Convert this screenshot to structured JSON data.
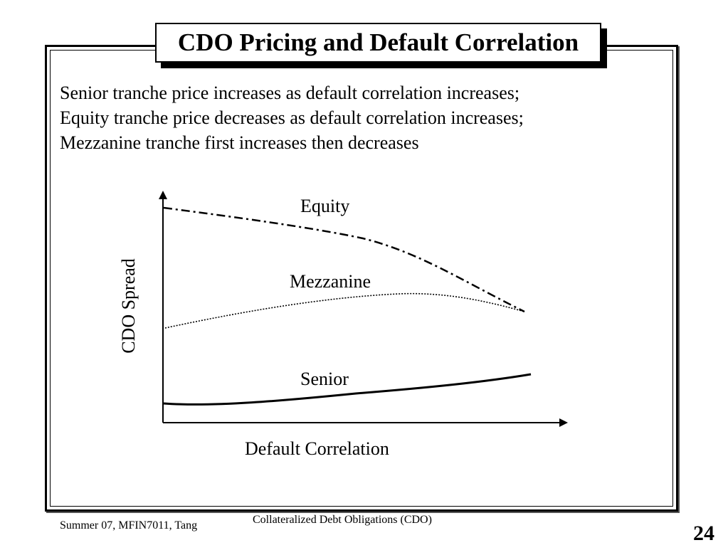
{
  "slide": {
    "title": "CDO Pricing and Default Correlation",
    "body_lines": [
      "Senior tranche price increases as default correlation increases;",
      "Equity tranche price decreases as default correlation increases;",
      "Mezzanine tranche first increases then decreases"
    ]
  },
  "figure": {
    "ylabel": "CDO Spread",
    "xlabel": "Default Correlation",
    "curves": {
      "equity": "Equity",
      "mezzanine": "Mezzanine",
      "senior": "Senior"
    }
  },
  "footer": {
    "left": "Summer 07, MFIN7011, Tang",
    "center": "Collateralized Debt Obligations (CDO)",
    "page": "24"
  }
}
